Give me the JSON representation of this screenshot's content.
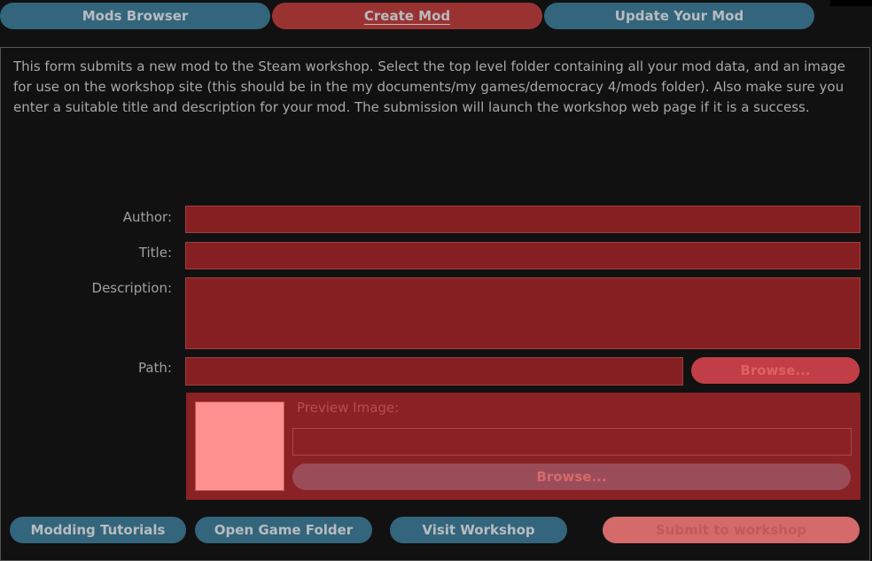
{
  "tabs": [
    {
      "label": "Mods Browser",
      "active": false
    },
    {
      "label": "Create Mod",
      "active": true
    },
    {
      "label": "Update Your Mod",
      "active": false
    }
  ],
  "intro": "This form submits a new mod to the Steam workshop. Select the top level folder containing all your mod data, and an image for use on the workshop site (this should be in the my documents/my games/democracy 4/mods folder). Also make sure you enter a suitable title and description for your mod. The submission will launch the workshop web page if it is a success.",
  "form": {
    "author_label": "Author:",
    "author_value": "",
    "title_label": "Title:",
    "title_value": "",
    "description_label": "Description:",
    "description_value": "",
    "path_label": "Path:",
    "path_value": "",
    "path_browse": "Browse...",
    "preview_label": "Preview Image:",
    "preview_value": "",
    "preview_browse": "Browse..."
  },
  "footer": {
    "tutorials": "Modding Tutorials",
    "open_folder": "Open Game Folder",
    "visit_workshop": "Visit Workshop",
    "submit": "Submit to workshop"
  },
  "colors": {
    "tab_blue": "#33657c",
    "tab_active": "#9b3232",
    "field": "#861f21",
    "submit_disabled": "#d46a6a"
  }
}
